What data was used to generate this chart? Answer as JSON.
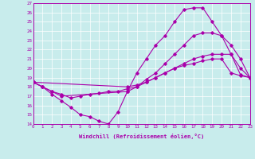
{
  "xlabel": "Windchill (Refroidissement éolien,°C)",
  "bg_color": "#c8ecec",
  "line_color": "#aa00aa",
  "grid_color": "#ffffff",
  "xmin": 0,
  "xmax": 23,
  "ymin": 14,
  "ymax": 27,
  "line1_x": [
    0,
    1,
    2,
    3,
    4,
    5,
    6,
    7,
    8,
    9,
    10,
    11,
    12,
    13,
    14,
    15,
    16,
    17,
    18,
    19,
    20,
    21,
    22,
    23
  ],
  "line1_y": [
    18.5,
    18.0,
    17.2,
    16.5,
    15.8,
    15.0,
    14.8,
    14.3,
    14.0,
    15.3,
    17.5,
    19.5,
    21.0,
    22.5,
    23.5,
    25.0,
    26.3,
    26.5,
    26.5,
    25.0,
    23.5,
    21.5,
    20.0,
    19.0
  ],
  "line2_x": [
    0,
    10,
    11,
    12,
    13,
    14,
    15,
    16,
    17,
    18,
    19,
    20,
    21,
    22,
    23
  ],
  "line2_y": [
    18.5,
    18.0,
    18.2,
    18.5,
    19.0,
    19.5,
    20.0,
    20.5,
    21.0,
    21.3,
    21.5,
    21.5,
    21.5,
    19.3,
    19.0
  ],
  "line3_x": [
    0,
    1,
    2,
    3,
    10,
    11,
    12,
    13,
    14,
    15,
    16,
    17,
    18,
    19,
    20,
    21,
    22,
    23
  ],
  "line3_y": [
    18.5,
    18.0,
    17.5,
    17.0,
    17.5,
    18.0,
    18.8,
    19.5,
    20.5,
    21.5,
    22.5,
    23.5,
    23.8,
    23.8,
    23.5,
    22.5,
    21.0,
    19.0
  ],
  "line4_x": [
    0,
    1,
    2,
    3,
    4,
    5,
    6,
    7,
    8,
    9,
    10,
    11,
    12,
    13,
    14,
    15,
    16,
    17,
    18,
    19,
    20,
    21,
    22,
    23
  ],
  "line4_y": [
    18.5,
    18.0,
    17.5,
    17.2,
    16.8,
    17.0,
    17.2,
    17.3,
    17.5,
    17.5,
    17.8,
    18.0,
    18.5,
    19.0,
    19.5,
    20.0,
    20.3,
    20.5,
    20.8,
    21.0,
    21.0,
    19.5,
    19.2,
    19.0
  ]
}
